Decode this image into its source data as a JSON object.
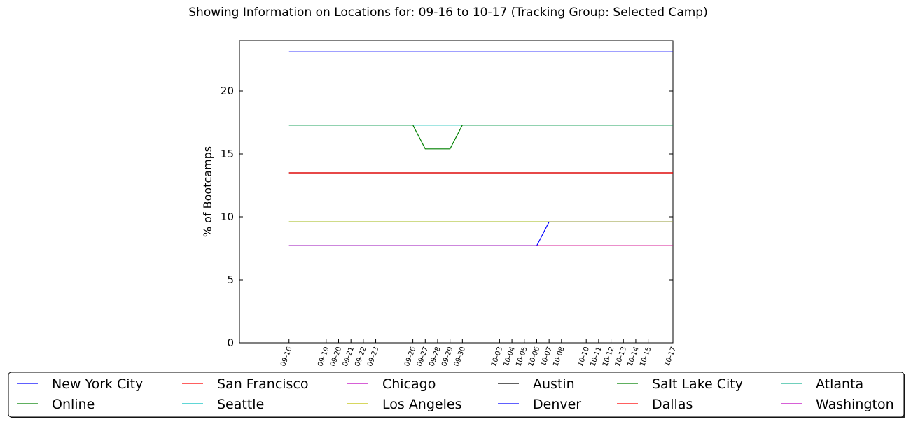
{
  "chart_data": {
    "type": "line",
    "title": "Showing Information on Locations for: 09-16 to 10-17 (Tracking Group: Selected Camp)",
    "xlabel": "",
    "ylabel": "% of Bootcamps",
    "ylim": [
      0,
      24
    ],
    "yticks": [
      0,
      5,
      10,
      15,
      20
    ],
    "grid": false,
    "legend_position": "bottom",
    "x": [
      "09-16",
      "09-19",
      "09-20",
      "09-21",
      "09-22",
      "09-23",
      "09-26",
      "09-27",
      "09-28",
      "09-29",
      "09-30",
      "10-03",
      "10-04",
      "10-05",
      "10-06",
      "10-07",
      "10-08",
      "10-10",
      "10-11",
      "10-12",
      "10-13",
      "10-14",
      "10-15",
      "10-17"
    ],
    "x_days": [
      0,
      3,
      4,
      5,
      6,
      7,
      10,
      11,
      12,
      13,
      14,
      17,
      18,
      19,
      20,
      21,
      22,
      24,
      25,
      26,
      27,
      28,
      29,
      31
    ],
    "series": [
      {
        "name": "New York City",
        "color": "#0000ff",
        "values": [
          23.1,
          23.1,
          23.1,
          23.1,
          23.1,
          23.1,
          23.1,
          23.1,
          23.1,
          23.1,
          23.1,
          23.1,
          23.1,
          23.1,
          23.1,
          23.1,
          23.1,
          23.1,
          23.1,
          23.1,
          23.1,
          23.1,
          23.1,
          23.1
        ]
      },
      {
        "name": "Online",
        "color": "#008000",
        "values": [
          17.3,
          17.3,
          17.3,
          17.3,
          17.3,
          17.3,
          17.3,
          15.4,
          15.4,
          15.4,
          17.3,
          17.3,
          17.3,
          17.3,
          17.3,
          17.3,
          17.3,
          17.3,
          17.3,
          17.3,
          17.3,
          17.3,
          17.3,
          17.3
        ]
      },
      {
        "name": "San Francisco",
        "color": "#ff0000",
        "values": [
          13.5,
          13.5,
          13.5,
          13.5,
          13.5,
          13.5,
          13.5,
          13.5,
          13.5,
          13.5,
          13.5,
          13.5,
          13.5,
          13.5,
          13.5,
          13.5,
          13.5,
          13.5,
          13.5,
          13.5,
          13.5,
          13.5,
          13.5,
          13.5
        ]
      },
      {
        "name": "Seattle",
        "color": "#00bfbf",
        "values": [
          17.3,
          17.3,
          17.3,
          17.3,
          17.3,
          17.3,
          17.3,
          17.3,
          17.3,
          17.3,
          17.3,
          17.3,
          17.3,
          17.3,
          17.3,
          17.3,
          17.3,
          17.3,
          17.3,
          17.3,
          17.3,
          17.3,
          17.3,
          17.3
        ]
      },
      {
        "name": "Chicago",
        "color": "#bf00bf",
        "values": [
          7.7,
          7.7,
          7.7,
          7.7,
          7.7,
          7.7,
          7.7,
          7.7,
          7.7,
          7.7,
          7.7,
          7.7,
          7.7,
          7.7,
          7.7,
          7.7,
          7.7,
          7.7,
          7.7,
          7.7,
          7.7,
          7.7,
          7.7,
          7.7
        ]
      },
      {
        "name": "Los Angeles",
        "color": "#bfbf00",
        "values": [
          9.6,
          9.6,
          9.6,
          9.6,
          9.6,
          9.6,
          9.6,
          9.6,
          9.6,
          9.6,
          9.6,
          9.6,
          9.6,
          9.6,
          9.6,
          9.6,
          9.6,
          9.6,
          9.6,
          9.6,
          9.6,
          9.6,
          9.6,
          9.6
        ]
      },
      {
        "name": "Austin",
        "color": "#000000",
        "values": [
          13.5,
          13.5,
          13.5,
          13.5,
          13.5,
          13.5,
          13.5,
          13.5,
          13.5,
          13.5,
          13.5,
          13.5,
          13.5,
          13.5,
          13.5,
          13.5,
          13.5,
          13.5,
          13.5,
          13.5,
          13.5,
          13.5,
          13.5,
          13.5
        ]
      },
      {
        "name": "Denver",
        "color": "#0000ff",
        "values": [
          7.7,
          7.7,
          7.7,
          7.7,
          7.7,
          7.7,
          7.7,
          7.7,
          7.7,
          7.7,
          7.7,
          7.7,
          7.7,
          7.7,
          7.7,
          9.6,
          9.6,
          9.6,
          9.6,
          9.6,
          9.6,
          9.6,
          9.6,
          9.6
        ]
      },
      {
        "name": "Salt Lake City",
        "color": "#008000",
        "values": [
          9.6,
          9.6,
          9.6,
          9.6,
          9.6,
          9.6,
          9.6,
          9.6,
          9.6,
          9.6,
          9.6,
          9.6,
          9.6,
          9.6,
          9.6,
          9.6,
          9.6,
          9.6,
          9.6,
          9.6,
          9.6,
          9.6,
          9.6,
          9.6
        ]
      },
      {
        "name": "Dallas",
        "color": "#ff0000",
        "values": [
          7.7,
          7.7,
          7.7,
          7.7,
          7.7,
          7.7,
          7.7,
          7.7,
          7.7,
          7.7,
          7.7,
          7.7,
          7.7,
          7.7,
          7.7,
          7.7,
          7.7,
          7.7,
          7.7,
          7.7,
          7.7,
          7.7,
          7.7,
          7.7
        ]
      },
      {
        "name": "Atlanta",
        "color": "#1ab394",
        "values": [
          17.3,
          17.3,
          17.3,
          17.3,
          17.3,
          17.3,
          17.3,
          17.3,
          17.3,
          17.3,
          17.3,
          17.3,
          17.3,
          17.3,
          17.3,
          17.3,
          17.3,
          17.3,
          17.3,
          17.3,
          17.3,
          17.3,
          17.3,
          17.3
        ]
      },
      {
        "name": "Washington",
        "color": "#bf00bf",
        "values": [
          7.7,
          7.7,
          7.7,
          7.7,
          7.7,
          7.7,
          7.7,
          7.7,
          7.7,
          7.7,
          7.7,
          7.7,
          7.7,
          7.7,
          7.7,
          7.7,
          7.7,
          7.7,
          7.7,
          7.7,
          7.7,
          7.7,
          7.7,
          7.7
        ]
      }
    ]
  }
}
